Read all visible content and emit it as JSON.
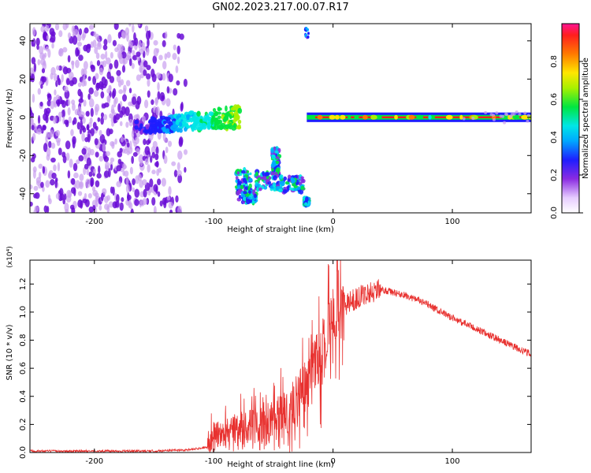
{
  "title": "GN02.2023.217.00.07.R17",
  "colors": {
    "snr_line": "#e8312f",
    "blob_purple": "#6a0dd6",
    "blob_light": "#c9a0f0"
  },
  "chart_data": [
    {
      "type": "heatmap",
      "xlabel": "Height of straight line (km)",
      "ylabel": "Frequency (Hz)",
      "xlim": [
        -254,
        166
      ],
      "ylim": [
        -50,
        49
      ],
      "x_ticks": [
        "-200",
        "-100",
        "0",
        "100"
      ],
      "x_tick_values": [
        -200,
        -100,
        0,
        100
      ],
      "y_ticks": [
        "-40",
        "-20",
        "0",
        "20",
        "40"
      ],
      "y_tick_values": [
        -40,
        -20,
        0,
        20,
        40
      ],
      "colorbar": {
        "label": "Normalized spectral amplitude",
        "ticks": [
          "0.0",
          "0.2",
          "0.4",
          "0.6",
          "0.8"
        ],
        "tick_values": [
          0.0,
          0.2,
          0.4,
          0.6,
          0.8
        ],
        "range": [
          0,
          1
        ]
      },
      "regions": [
        {
          "description": "scattered noise",
          "x": [
            -254,
            -120
          ],
          "y": [
            -50,
            49
          ],
          "amplitude": 0.15
        },
        {
          "description": "rising band",
          "x": [
            -165,
            -78
          ],
          "y": [
            -12,
            6
          ],
          "amplitude": 0.45
        },
        {
          "description": "lower cluster",
          "x": [
            -80,
            -22
          ],
          "y": [
            -45,
            -17
          ],
          "amplitude": 0.5
        },
        {
          "description": "small blob",
          "x": [
            -24,
            -20
          ],
          "y": [
            42,
            47
          ],
          "amplitude": 0.3
        },
        {
          "description": "steady line",
          "x": [
            -22,
            166
          ],
          "y": [
            -2,
            2
          ],
          "amplitude": 0.95
        }
      ]
    },
    {
      "type": "line",
      "xlabel": "Height of straight line (km)",
      "ylabel": "SNR (10 * v/v)",
      "y_multiplier": "(x10⁴)",
      "xlim": [
        -254,
        166
      ],
      "ylim": [
        0,
        1.37
      ],
      "x_ticks": [
        "-200",
        "-100",
        "0",
        "100"
      ],
      "x_tick_values": [
        -200,
        -100,
        0,
        100
      ],
      "y_ticks": [
        "0.0",
        "0.2",
        "0.4",
        "0.6",
        "0.8",
        "1.0",
        "1.2"
      ],
      "y_tick_values": [
        0.0,
        0.2,
        0.4,
        0.6,
        0.8,
        1.0,
        1.2
      ],
      "series": [
        {
          "x": [
            -254,
            -200,
            -150,
            -120,
            -105,
            -100,
            -90,
            -80,
            -70,
            -60,
            -50,
            -40,
            -35,
            -30,
            -25,
            -20,
            -15,
            -10,
            -5,
            0,
            5,
            10,
            20,
            30,
            40,
            50,
            60,
            70,
            80,
            90,
            100,
            110,
            120,
            130,
            140,
            150,
            160,
            166
          ],
          "y": [
            0.01,
            0.01,
            0.01,
            0.02,
            0.04,
            0.12,
            0.15,
            0.17,
            0.18,
            0.17,
            0.22,
            0.28,
            0.32,
            0.38,
            0.45,
            0.5,
            0.6,
            0.7,
            0.8,
            0.95,
            1.0,
            1.05,
            1.1,
            1.14,
            1.16,
            1.14,
            1.12,
            1.09,
            1.05,
            1.0,
            0.96,
            0.92,
            0.88,
            0.84,
            0.8,
            0.76,
            0.72,
            0.7
          ]
        }
      ]
    }
  ]
}
